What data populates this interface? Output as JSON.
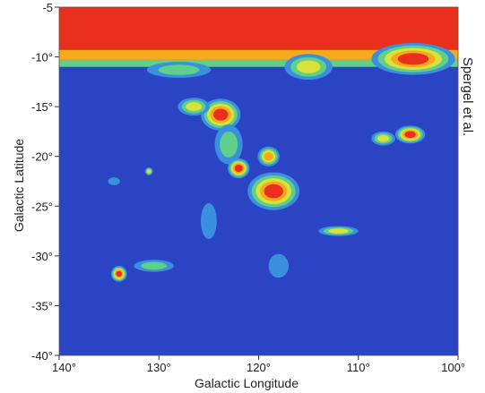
{
  "chart_data": {
    "type": "heatmap",
    "title": "",
    "xlabel": "Galactic Longitude",
    "ylabel": "Galactic Latitude",
    "credit": "Spergel et al.",
    "xlim": [
      140,
      100
    ],
    "ylim": [
      -40,
      -5
    ],
    "x_reversed": true,
    "grid": false,
    "x_ticks": [
      {
        "value": 140,
        "label": "140°"
      },
      {
        "value": 130,
        "label": "130°"
      },
      {
        "value": 120,
        "label": "120°"
      },
      {
        "value": 110,
        "label": "110°"
      },
      {
        "value": 100,
        "label": "100°"
      }
    ],
    "y_ticks": [
      {
        "value": -5,
        "label": "-5"
      },
      {
        "value": -10,
        "label": "-10°"
      },
      {
        "value": -15,
        "label": "-15°"
      },
      {
        "value": -20,
        "label": "-20°"
      },
      {
        "value": -25,
        "label": "-25°"
      },
      {
        "value": -30,
        "label": "-30°"
      },
      {
        "value": -35,
        "label": "-35°"
      },
      {
        "value": -40,
        "label": "-40°"
      }
    ],
    "colormap": [
      "#2b44c4",
      "#3a90dc",
      "#5fcf8a",
      "#d8e23a",
      "#f5a91e",
      "#e8301c"
    ],
    "background_color": "#2b44c4",
    "bands": [
      {
        "lat_from": -5,
        "lat_to": -9.3,
        "level": 5
      },
      {
        "lat_from": -9.3,
        "lat_to": -10.3,
        "level": 4
      },
      {
        "lat_from": -10.3,
        "lat_to": -11.0,
        "level": 2
      }
    ],
    "features": [
      {
        "name": "upper-right-extension",
        "lon": 104.5,
        "lat": -10.2,
        "rlon": 4.2,
        "rlat": 1.6,
        "peak": 5
      },
      {
        "name": "upper-mid-extension",
        "lon": 115.0,
        "lat": -11.0,
        "rlon": 2.4,
        "rlat": 1.3,
        "peak": 3
      },
      {
        "name": "upper-left-filament",
        "lon": 128.0,
        "lat": -11.3,
        "rlon": 3.2,
        "rlat": 0.8,
        "peak": 2
      },
      {
        "name": "cloud-124-16",
        "lon": 123.8,
        "lat": -15.8,
        "rlon": 2.0,
        "rlat": 1.6,
        "peak": 5
      },
      {
        "name": "cloud-126-15",
        "lon": 126.5,
        "lat": -15.0,
        "rlon": 1.6,
        "rlat": 0.9,
        "peak": 3
      },
      {
        "name": "filament-123-19",
        "lon": 123.0,
        "lat": -18.8,
        "rlon": 1.4,
        "rlat": 2.0,
        "peak": 2
      },
      {
        "name": "cloud-122-21",
        "lon": 122.0,
        "lat": -21.2,
        "rlon": 1.1,
        "rlat": 1.0,
        "peak": 5
      },
      {
        "name": "cloud-119-20",
        "lon": 119.0,
        "lat": -20.0,
        "rlon": 1.1,
        "rlat": 1.0,
        "peak": 4
      },
      {
        "name": "cloud-118-23",
        "lon": 118.5,
        "lat": -23.5,
        "rlon": 2.6,
        "rlat": 1.9,
        "peak": 5
      },
      {
        "name": "cloud-105-18",
        "lon": 104.8,
        "lat": -17.8,
        "rlon": 1.5,
        "rlat": 0.9,
        "peak": 5
      },
      {
        "name": "cloud-108-18",
        "lon": 107.5,
        "lat": -18.2,
        "rlon": 1.2,
        "rlat": 0.7,
        "peak": 3
      },
      {
        "name": "cloud-134-32",
        "lon": 134.0,
        "lat": -31.8,
        "rlon": 0.8,
        "rlat": 0.8,
        "peak": 5
      },
      {
        "name": "filament-130-31",
        "lon": 130.5,
        "lat": -31.0,
        "rlon": 2.0,
        "rlat": 0.6,
        "peak": 2
      },
      {
        "name": "filament-112-28",
        "lon": 112.0,
        "lat": -27.5,
        "rlon": 2.0,
        "rlat": 0.5,
        "peak": 3
      },
      {
        "name": "filament-125-26",
        "lon": 125.0,
        "lat": -26.5,
        "rlon": 0.8,
        "rlat": 1.8,
        "peak": 1
      },
      {
        "name": "cloud-118-31",
        "lon": 118.0,
        "lat": -31.0,
        "rlon": 1.0,
        "rlat": 1.2,
        "peak": 1
      },
      {
        "name": "spot-134-22",
        "lon": 134.5,
        "lat": -22.5,
        "rlon": 0.6,
        "rlat": 0.4,
        "peak": 1
      },
      {
        "name": "spot-131-21",
        "lon": 131.0,
        "lat": -21.5,
        "rlon": 0.4,
        "rlat": 0.4,
        "peak": 3
      }
    ]
  }
}
